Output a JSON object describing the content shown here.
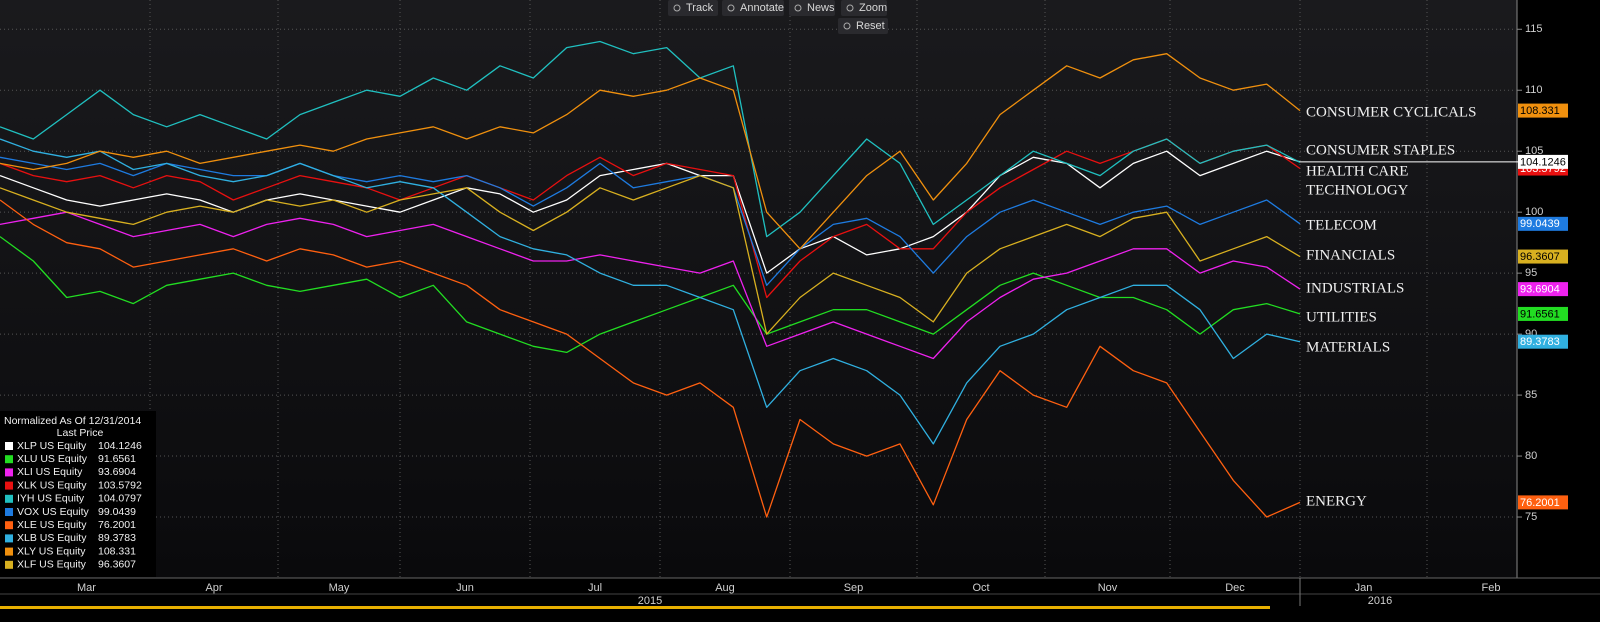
{
  "chart_data": {
    "type": "line",
    "toolbar": [
      "Track",
      "Annotate",
      "News",
      "Zoom",
      "Reset"
    ],
    "legend_title": "Normalized As Of 12/31/2014",
    "legend_subtitle": "Last Price",
    "ylim": [
      70,
      117.4
    ],
    "yticks": [
      75,
      80,
      85,
      90,
      95,
      100,
      105,
      110,
      115
    ],
    "grid": true,
    "months": [
      "Mar",
      "Apr",
      "May",
      "Jun",
      "Jul",
      "Aug",
      "Sep",
      "Oct",
      "Nov",
      "Dec",
      "Jan",
      "Feb"
    ],
    "years": [
      "2015",
      "2016"
    ],
    "annotations": [
      "CONSUMER CYCLICALS",
      "CONSUMER STAPLES",
      "HEALTH CARE",
      "TECHNOLOGY",
      "TELECOM",
      "FINANCIALS",
      "INDUSTRIALS",
      "UTILITIES",
      "MATERIALS",
      "ENERGY"
    ],
    "series": [
      {
        "name": "XLP US Equity",
        "color": "#ffffff",
        "values": [
          103,
          102,
          101,
          100.5,
          101,
          101.5,
          101,
          100,
          101,
          101.5,
          101,
          100.5,
          100,
          101,
          102,
          101.5,
          100,
          101,
          103,
          103.5,
          104,
          103,
          103,
          95,
          97,
          98,
          96.5,
          97,
          98,
          100,
          103,
          104.5,
          104,
          102,
          104,
          105,
          103,
          104,
          105,
          104.1246
        ]
      },
      {
        "name": "XLU US Equity",
        "color": "#22dd22",
        "values": [
          98,
          96,
          93,
          93.5,
          92.5,
          94,
          94.5,
          95,
          94,
          93.5,
          94,
          94.5,
          93,
          94,
          91,
          90,
          89,
          88.5,
          90,
          91,
          92,
          93,
          94,
          90,
          91,
          92,
          92,
          91,
          90,
          92,
          94,
          95,
          94,
          93,
          93,
          92,
          90,
          92,
          92.5,
          91.6561
        ]
      },
      {
        "name": "XLI US Equity",
        "color": "#ee22ee",
        "values": [
          99,
          99.5,
          100,
          99,
          98,
          98.5,
          99,
          98,
          99,
          99.5,
          99,
          98,
          98.5,
          99,
          98,
          97,
          96,
          96,
          96.5,
          96,
          95.5,
          95,
          96,
          89,
          90,
          91,
          90,
          89,
          88,
          91,
          93,
          94.5,
          95,
          96,
          97,
          97,
          95,
          96,
          95.5,
          93.6904
        ]
      },
      {
        "name": "XLK US Equity",
        "color": "#e81010",
        "values": [
          104,
          103,
          102.5,
          103,
          102,
          103,
          102.5,
          101,
          102,
          103,
          102.5,
          102,
          101,
          102,
          103,
          102,
          101,
          103,
          104.5,
          103,
          104,
          103.5,
          103,
          93,
          96,
          98,
          99,
          97,
          97,
          100,
          102,
          103.5,
          105,
          104,
          105,
          106,
          104,
          105,
          105.5,
          103.5792
        ]
      },
      {
        "name": "IYH US Equity",
        "color": "#20c0c0",
        "values": [
          107,
          106,
          108,
          110,
          108,
          107,
          108,
          107,
          106,
          108,
          109,
          110,
          109.5,
          111,
          110,
          112,
          111,
          113.5,
          114,
          113,
          113.5,
          111,
          112,
          98,
          100,
          103,
          106,
          104,
          99,
          101,
          103,
          105,
          104,
          103,
          105,
          106,
          104,
          105,
          105.5,
          104.0797
        ]
      },
      {
        "name": "VOX US Equity",
        "color": "#1e7be0",
        "values": [
          104.5,
          104,
          103.5,
          104,
          103,
          104,
          103.5,
          103,
          103,
          104,
          103,
          102.5,
          103,
          102.5,
          103,
          102,
          100.5,
          102,
          104,
          102,
          102.5,
          103,
          102,
          94,
          97,
          99,
          99.5,
          98,
          95,
          98,
          100,
          101,
          100,
          99,
          100,
          100.5,
          99,
          100,
          101,
          99.0439
        ]
      },
      {
        "name": "XLE US Equity",
        "color": "#ff6010",
        "values": [
          101,
          99,
          97.5,
          97,
          95.5,
          96,
          96.5,
          97,
          96,
          97,
          96.5,
          95.5,
          96,
          95,
          94,
          92,
          91,
          90,
          88,
          86,
          85,
          86,
          84,
          75,
          83,
          81,
          80,
          81,
          76,
          83,
          87,
          85,
          84,
          89,
          87,
          86,
          82,
          78,
          75,
          76.2001
        ]
      },
      {
        "name": "XLB US Equity",
        "color": "#30b0e0",
        "values": [
          106,
          105,
          104.5,
          105,
          103.5,
          104,
          103,
          102.5,
          103,
          104,
          103,
          102,
          102.5,
          102,
          100,
          98,
          97,
          96.5,
          95,
          94,
          94,
          93,
          92,
          84,
          87,
          88,
          87,
          85,
          81,
          86,
          89,
          90,
          92,
          93,
          94,
          94,
          92,
          88,
          90,
          89.3783
        ]
      },
      {
        "name": "XLY US Equity",
        "color": "#f0900e",
        "values": [
          104,
          103.5,
          104,
          105,
          104.5,
          105,
          104,
          104.5,
          105,
          105.5,
          105,
          106,
          106.5,
          107,
          106,
          107,
          106.5,
          108,
          110,
          109.5,
          110,
          111,
          110,
          100,
          97,
          100,
          103,
          105,
          101,
          104,
          108,
          110,
          112,
          111,
          112.5,
          113,
          111,
          110,
          110.5,
          108.331
        ]
      },
      {
        "name": "XLF US Equity",
        "color": "#d8b020",
        "values": [
          102,
          101,
          100,
          99.5,
          99,
          100,
          100.5,
          100,
          101,
          100.5,
          101,
          100,
          101,
          101.5,
          102,
          100,
          98.5,
          100,
          102,
          101,
          102,
          103,
          102,
          90,
          93,
          95,
          94,
          93,
          91,
          95,
          97,
          98,
          99,
          98,
          99.5,
          100,
          96,
          97,
          98,
          96.3607
        ]
      }
    ]
  }
}
